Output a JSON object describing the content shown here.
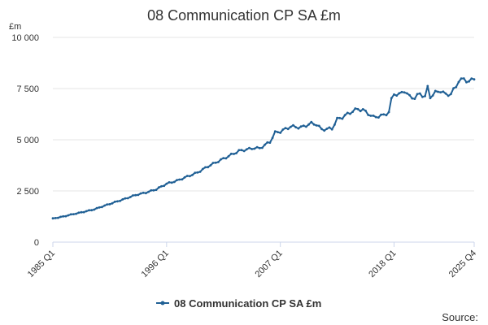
{
  "chart_data": {
    "type": "line",
    "title": "08 Communication CP SA £m",
    "ylabel": "£m",
    "xlabel": "",
    "ylim": [
      0,
      10000
    ],
    "yticks": [
      {
        "value": 0,
        "label": "0"
      },
      {
        "value": 2500,
        "label": "2 500"
      },
      {
        "value": 5000,
        "label": "5 000"
      },
      {
        "value": 7500,
        "label": "7 500"
      },
      {
        "value": 10000,
        "label": "10 000"
      }
    ],
    "xticks": [
      {
        "value": 1985.0,
        "label": "1985 Q1"
      },
      {
        "value": 1996.0,
        "label": "1996 Q1"
      },
      {
        "value": 2007.0,
        "label": "2007 Q1"
      },
      {
        "value": 2018.0,
        "label": "2018 Q1"
      },
      {
        "value": 2025.75,
        "label": "2025 Q4"
      }
    ],
    "xlim": [
      1985.0,
      2025.75
    ],
    "grid": true,
    "legend_position": "bottom",
    "series": [
      {
        "name": "08 Communication CP SA £m",
        "color": "#206095",
        "points": [
          [
            1985.0,
            1150
          ],
          [
            1986.0,
            1250
          ],
          [
            1987.0,
            1370
          ],
          [
            1988.0,
            1480
          ],
          [
            1989.0,
            1600
          ],
          [
            1990.0,
            1780
          ],
          [
            1991.0,
            1950
          ],
          [
            1992.0,
            2120
          ],
          [
            1993.0,
            2300
          ],
          [
            1994.0,
            2420
          ],
          [
            1995.0,
            2580
          ],
          [
            1996.0,
            2850
          ],
          [
            1997.0,
            3000
          ],
          [
            1998.0,
            3200
          ],
          [
            1999.0,
            3400
          ],
          [
            2000.0,
            3700
          ],
          [
            2001.0,
            3950
          ],
          [
            2002.0,
            4200
          ],
          [
            2003.0,
            4450
          ],
          [
            2004.0,
            4550
          ],
          [
            2004.5,
            4600
          ],
          [
            2005.0,
            4580
          ],
          [
            2006.0,
            4900
          ],
          [
            2006.5,
            5350
          ],
          [
            2007.0,
            5400
          ],
          [
            2008.0,
            5650
          ],
          [
            2009.0,
            5600
          ],
          [
            2010.0,
            5800
          ],
          [
            2010.5,
            5750
          ],
          [
            2011.0,
            5500
          ],
          [
            2012.0,
            5550
          ],
          [
            2012.5,
            6000
          ],
          [
            2013.0,
            6100
          ],
          [
            2014.0,
            6400
          ],
          [
            2014.5,
            6500
          ],
          [
            2015.0,
            6450
          ],
          [
            2016.0,
            6100
          ],
          [
            2017.0,
            6200
          ],
          [
            2017.5,
            6350
          ],
          [
            2017.75,
            6950
          ],
          [
            2018.0,
            7250
          ],
          [
            2018.5,
            7200
          ],
          [
            2019.0,
            7400
          ],
          [
            2019.5,
            7100
          ],
          [
            2020.0,
            7050
          ],
          [
            2020.5,
            7250
          ],
          [
            2021.0,
            7100
          ],
          [
            2021.25,
            7550
          ],
          [
            2021.5,
            7100
          ],
          [
            2022.0,
            7300
          ],
          [
            2022.5,
            7400
          ],
          [
            2023.0,
            7200
          ],
          [
            2023.5,
            7250
          ],
          [
            2024.0,
            7600
          ],
          [
            2024.25,
            7900
          ],
          [
            2024.75,
            7950
          ],
          [
            2025.25,
            7850
          ],
          [
            2025.75,
            7950
          ]
        ]
      }
    ],
    "source_label": "Source:"
  }
}
